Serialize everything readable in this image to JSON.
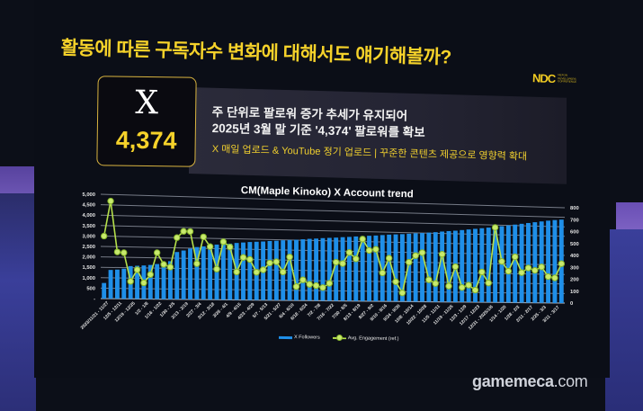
{
  "slide": {
    "title": "활동에 따른 구독자수 변화에 대해서도 얘기해볼까?",
    "logo": {
      "mark": "NDC",
      "subtitle": "NEXON DEVELOPERS CONFERENCE"
    },
    "x_card": {
      "icon": "x-logo-icon",
      "logo_glyph": "X",
      "count": "4,374"
    },
    "description": {
      "line1": "주 단위로 팔로워 증가 추세가 유지되어",
      "line2": "2025년 3월 말 기준 '4,374' 팔로워를 확보",
      "line3": "X 매일 업로드 & YouTube 정기 업로드 | 꾸준한 콘텐츠 제공으로 영향력 확대"
    },
    "colors": {
      "accent": "#f6d22a",
      "bar": "#1f8fe8",
      "line": "#b5e04a",
      "background": "#0b0e17"
    }
  },
  "watermark": {
    "name": "gamemeca",
    "tld": ".com"
  },
  "chart_data": {
    "type": "bar",
    "title": "CM(Maple Kinoko) X Account trend",
    "xlabel": "",
    "ylabel": "",
    "y_left": {
      "ticks": [
        "-",
        "500",
        "1,000",
        "1,500",
        "2,000",
        "2,500",
        "3,000",
        "3,500",
        "4,000",
        "4,500",
        "5,000"
      ],
      "range": [
        0,
        5000
      ]
    },
    "y_right": {
      "ticks": [
        "0",
        "100",
        "200",
        "300",
        "400",
        "500",
        "600",
        "700",
        "800"
      ],
      "range": [
        0,
        800
      ]
    },
    "grid": true,
    "legend": {
      "position": "bottom",
      "entries": [
        "X Followers",
        "Avg. Engagement (ref.)"
      ]
    },
    "x_tick_labels": [
      "2023/11/21 - 11/27",
      "12/5 - 12/11",
      "12/19 - 12/25",
      "1/2 - 1/8",
      "1/16 - 1/22",
      "1/30 - 2/5",
      "2/13 - 2/19",
      "2/27 - 3/4",
      "3/12 - 3/18",
      "3/26 - 4/1",
      "4/9 - 4/15",
      "4/23 - 4/29",
      "5/7 - 5/13",
      "5/21 - 5/27",
      "6/4 - 6/10",
      "6/18 - 6/24",
      "7/2 - 7/8",
      "7/16 - 7/22",
      "7/30 - 8/5",
      "8/13 - 8/19",
      "8/27 - 9/2",
      "9/10 - 9/16",
      "9/24 - 9/30",
      "10/8 - 10/14",
      "10/22 - 10/28",
      "11/5 - 11/11",
      "11/19 - 11/25",
      "12/3 - 12/9",
      "12/17 - 12/23",
      "12/31 - 2025/1/6",
      "1/14 - 1/20",
      "1/28 - 2/3",
      "2/11 - 2/17",
      "2/25 - 3/3",
      "3/11 - 3/17"
    ],
    "series": [
      {
        "name": "X Followers",
        "axis": "left",
        "type": "bar",
        "values": [
          750,
          1380,
          1400,
          1450,
          1580,
          1600,
          1620,
          1650,
          1700,
          1750,
          1850,
          2300,
          2380,
          2480,
          2560,
          2600,
          2650,
          2700,
          2720,
          2760,
          2800,
          2830,
          2860,
          2880,
          2900,
          2930,
          2950,
          2980,
          3000,
          3020,
          3050,
          3080,
          3100,
          3130,
          3150,
          3170,
          3200,
          3220,
          3250,
          3270,
          3300,
          3320,
          3350,
          3380,
          3400,
          3420,
          3450,
          3480,
          3500,
          3530,
          3560,
          3600,
          3630,
          3660,
          3700,
          3740,
          3780,
          3820,
          3860,
          3900,
          3950,
          4000,
          4050,
          4100,
          4150,
          4200,
          4250,
          4300,
          4340,
          4374
        ]
      },
      {
        "name": "Avg. Engagement (ref.)",
        "axis": "right",
        "type": "line",
        "values": [
          480,
          750,
          360,
          355,
          135,
          225,
          125,
          190,
          360,
          270,
          250,
          480,
          530,
          530,
          280,
          490,
          415,
          240,
          455,
          415,
          220,
          335,
          320,
          220,
          240,
          295,
          305,
          225,
          345,
          110,
          165,
          130,
          120,
          105,
          140,
          310,
          300,
          390,
          340,
          500,
          410,
          420,
          230,
          350,
          160,
          70,
          320,
          375,
          400,
          180,
          150,
          390,
          130,
          290,
          120,
          140,
          100,
          250,
          160,
          620,
          340,
          260,
          380,
          250,
          290,
          270,
          300,
          220,
          210,
          330
        ]
      }
    ]
  }
}
